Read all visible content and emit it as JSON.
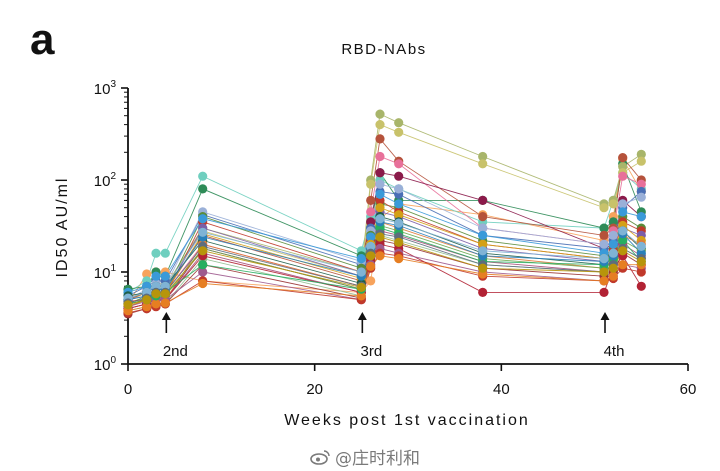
{
  "panel_label": "a",
  "watermark": {
    "text": "@庄时利和",
    "icon": "weibo-icon"
  },
  "chart_data": {
    "type": "line",
    "title": "RBD-NAbs",
    "xlabel": "Weeks post 1st vaccination",
    "ylabel": "ID50 AU/ml",
    "xlim": [
      0,
      60
    ],
    "ylim": [
      1,
      1000
    ],
    "yscale": "log",
    "xticks": [
      0,
      20,
      40,
      60
    ],
    "yticks": [
      {
        "value": 1,
        "base": "10",
        "exp": "0"
      },
      {
        "value": 10,
        "base": "10",
        "exp": "1"
      },
      {
        "value": 100,
        "base": "10",
        "exp": "2"
      },
      {
        "value": 1000,
        "base": "10",
        "exp": "3"
      }
    ],
    "grid": false,
    "x": [
      0,
      2,
      3,
      4,
      8,
      25,
      26,
      27,
      29,
      38,
      51,
      52,
      53,
      55
    ],
    "annotations": [
      {
        "label": "2nd",
        "x": 4
      },
      {
        "label": "3rd",
        "x": 25
      },
      {
        "label": "4th",
        "x": 51
      }
    ],
    "series": [
      {
        "color": "#f7a35c",
        "values": [
          4.5,
          9.5,
          10,
          10,
          8,
          6,
          8,
          38,
          55,
          42,
          22,
          40,
          170,
          75
        ]
      },
      {
        "color": "#6fcfbf",
        "values": [
          6,
          8,
          16,
          16,
          110,
          17,
          40,
          100,
          80,
          35,
          30,
          60,
          120,
          80
        ]
      },
      {
        "color": "#2e8b57",
        "values": [
          6.5,
          7,
          10,
          9,
          80,
          15,
          30,
          120,
          60,
          60,
          30,
          35,
          150,
          45
        ]
      },
      {
        "color": "#a8b56a",
        "values": [
          5,
          6,
          8,
          7,
          30,
          10,
          100,
          520,
          420,
          180,
          55,
          60,
          140,
          190
        ]
      },
      {
        "color": "#c8c26a",
        "values": [
          4.8,
          6,
          7,
          7,
          28,
          9,
          90,
          400,
          330,
          150,
          50,
          55,
          120,
          160
        ]
      },
      {
        "color": "#b5523b",
        "values": [
          5,
          6,
          7,
          6,
          25,
          8,
          60,
          280,
          160,
          40,
          25,
          30,
          175,
          100
        ]
      },
      {
        "color": "#e8709a",
        "values": [
          4.5,
          5,
          6,
          6,
          20,
          7,
          45,
          180,
          150,
          30,
          20,
          28,
          110,
          90
        ]
      },
      {
        "color": "#8b1a4a",
        "values": [
          4.2,
          5,
          5.5,
          5,
          18,
          6.5,
          35,
          120,
          110,
          60,
          18,
          20,
          60,
          40
        ]
      },
      {
        "color": "#4a6fb5",
        "values": [
          5.5,
          7,
          8,
          8,
          42,
          12,
          30,
          75,
          70,
          25,
          18,
          22,
          50,
          75
        ]
      },
      {
        "color": "#9ab0d8",
        "values": [
          5,
          6.5,
          7.5,
          7,
          45,
          13,
          28,
          90,
          80,
          30,
          20,
          25,
          55,
          65
        ]
      },
      {
        "color": "#5b8c3a",
        "values": [
          4.5,
          5.5,
          6,
          6,
          40,
          11,
          25,
          55,
          50,
          22,
          15,
          18,
          40,
          30
        ]
      },
      {
        "color": "#c03a2b",
        "values": [
          4.8,
          5,
          6,
          5.5,
          35,
          10,
          22,
          60,
          45,
          20,
          14,
          17,
          35,
          28
        ]
      },
      {
        "color": "#7b5ea7",
        "values": [
          5,
          5.5,
          6,
          6,
          30,
          9,
          20,
          45,
          40,
          18,
          13,
          16,
          30,
          25
        ]
      },
      {
        "color": "#3a9ad9",
        "values": [
          6,
          7,
          9,
          9,
          38,
          14,
          24,
          70,
          55,
          25,
          16,
          20,
          45,
          40
        ]
      },
      {
        "color": "#d4a017",
        "values": [
          4.2,
          5,
          6,
          6,
          26,
          8.5,
          20,
          50,
          42,
          20,
          14,
          16,
          32,
          22
        ]
      },
      {
        "color": "#1f5f4a",
        "values": [
          5.5,
          6,
          7,
          7,
          22,
          7.5,
          18,
          40,
          35,
          16,
          12,
          15,
          28,
          18
        ]
      },
      {
        "color": "#e07b39",
        "values": [
          4,
          4.5,
          5,
          5,
          20,
          7,
          17,
          35,
          30,
          15,
          11,
          14,
          25,
          20
        ]
      },
      {
        "color": "#6aa84f",
        "values": [
          4.5,
          5,
          5.5,
          5.5,
          18,
          6.5,
          16,
          32,
          28,
          14,
          11,
          13,
          22,
          17
        ]
      },
      {
        "color": "#a64d79",
        "values": [
          4,
          4.5,
          5,
          5,
          16,
          6,
          15,
          28,
          25,
          13,
          10,
          12,
          20,
          15
        ]
      },
      {
        "color": "#8fbc8f",
        "values": [
          3.8,
          4.2,
          4.5,
          4.5,
          14,
          5.5,
          14,
          25,
          22,
          12,
          10,
          11,
          18,
          14
        ]
      },
      {
        "color": "#993333",
        "values": [
          3.5,
          4,
          4.5,
          4.5,
          12,
          5.2,
          13,
          22,
          20,
          11,
          9,
          10,
          16,
          12
        ]
      },
      {
        "color": "#b22234",
        "values": [
          4,
          4.5,
          5,
          5,
          15,
          6,
          14,
          20,
          18,
          6,
          6,
          11,
          15,
          7
        ]
      },
      {
        "color": "#9e5a8e",
        "values": [
          4.2,
          4.8,
          5,
          5,
          10,
          5,
          12,
          18,
          16,
          10,
          8,
          9,
          12,
          11
        ]
      },
      {
        "color": "#c0392b",
        "values": [
          3.6,
          4,
          4.2,
          4.5,
          8,
          5,
          11,
          16,
          15,
          9,
          8,
          8.5,
          11,
          10
        ]
      },
      {
        "color": "#e67e22",
        "values": [
          3.8,
          4.2,
          4.5,
          4.6,
          7.5,
          5.5,
          11.5,
          15,
          14,
          9.5,
          8,
          9,
          12,
          12
        ]
      },
      {
        "color": "#27ae60",
        "values": [
          4.5,
          5,
          5.5,
          6,
          12,
          6.5,
          15,
          30,
          26,
          13,
          12,
          14,
          22,
          13
        ]
      },
      {
        "color": "#2980b9",
        "values": [
          5,
          5.5,
          6.5,
          6.5,
          24,
          9,
          18,
          35,
          32,
          15,
          13,
          15,
          26,
          16
        ]
      },
      {
        "color": "#7fb3d5",
        "values": [
          5.2,
          6,
          7,
          7,
          27,
          10,
          19,
          38,
          34,
          17,
          14,
          16,
          28,
          19
        ]
      },
      {
        "color": "#5d6d7e",
        "values": [
          4.6,
          5.2,
          6,
          6,
          19,
          7,
          16,
          26,
          24,
          12,
          10,
          12,
          18,
          14
        ]
      },
      {
        "color": "#b7950b",
        "values": [
          4.4,
          5,
          5.8,
          5.8,
          17,
          6.8,
          15,
          24,
          21,
          11,
          10,
          11,
          17,
          13
        ]
      }
    ]
  }
}
